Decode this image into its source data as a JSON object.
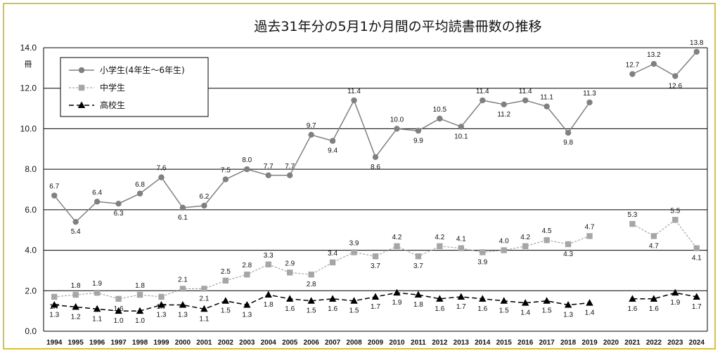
{
  "chart_data": {
    "type": "line",
    "title": "過去31年分の5月1か月間の平均読書冊数の推移",
    "ylabel": "冊",
    "ylim": [
      0,
      14
    ],
    "yticks": [
      "0.0",
      "2.0",
      "4.0",
      "6.0",
      "8.0",
      "10.0",
      "12.0",
      "14.0"
    ],
    "grid": true,
    "legend_position": "top-left",
    "categories": [
      "1994",
      "1995",
      "1996",
      "1997",
      "1998",
      "1999",
      "2000",
      "2001",
      "2002",
      "2003",
      "2004",
      "2005",
      "2006",
      "2007",
      "2008",
      "2009",
      "2010",
      "2011",
      "2012",
      "2013",
      "2014",
      "2015",
      "2016",
      "2017",
      "2018",
      "2019",
      "2020",
      "2021",
      "2022",
      "2023",
      "2024"
    ],
    "series": [
      {
        "name": "小学生(4年生〜6年生)",
        "color": "#808080",
        "marker": "circle",
        "values": [
          6.7,
          5.4,
          6.4,
          6.3,
          6.8,
          7.6,
          6.1,
          6.2,
          7.5,
          8.0,
          7.7,
          7.7,
          9.7,
          9.4,
          11.4,
          8.6,
          10.0,
          9.9,
          10.5,
          10.1,
          11.4,
          11.2,
          11.4,
          11.1,
          9.8,
          11.3,
          null,
          12.7,
          13.2,
          12.6,
          13.8
        ],
        "labels": [
          "6.7",
          "5.4",
          "6.4",
          "6.3",
          "6.8",
          "7.6",
          "6.1",
          "6.2",
          "7.5",
          "8.0",
          "7.7",
          "7.7",
          "9.7",
          "9.4",
          "11.4",
          "8.6",
          "10.0",
          "9.9",
          "10.5",
          "10.1",
          "11.4",
          "11.2",
          "11.4",
          "11.1",
          "9.8",
          "11.3",
          "",
          "12.7",
          "13.2",
          "12.6",
          "13.8"
        ]
      },
      {
        "name": "中学生",
        "color": "#a6a6a6",
        "marker": "square",
        "values": [
          1.7,
          1.8,
          1.9,
          1.6,
          1.8,
          1.7,
          2.1,
          2.1,
          2.5,
          2.8,
          3.3,
          2.9,
          2.8,
          3.4,
          3.9,
          3.7,
          4.2,
          3.7,
          4.2,
          4.1,
          3.9,
          4.0,
          4.2,
          4.5,
          4.3,
          4.7,
          null,
          5.3,
          4.7,
          5.5,
          4.1
        ],
        "labels": [
          "1.7",
          "1.8",
          "1.9",
          "1.6",
          "1.8",
          "1.7",
          "2.1",
          "2.1",
          "2.5",
          "2.8",
          "3.3",
          "2.9",
          "2.8",
          "3.4",
          "3.9",
          "3.7",
          "4.2",
          "3.7",
          "4.2",
          "4.1",
          "3.9",
          "4.0",
          "4.2",
          "4.5",
          "4.3",
          "4.7",
          "",
          "5.3",
          "4.7",
          "5.5",
          "4.1"
        ]
      },
      {
        "name": "高校生",
        "color": "#000000",
        "marker": "triangle",
        "values": [
          1.3,
          1.2,
          1.1,
          1.0,
          1.0,
          1.3,
          1.3,
          1.1,
          1.5,
          1.3,
          1.8,
          1.6,
          1.5,
          1.6,
          1.5,
          1.7,
          1.9,
          1.8,
          1.6,
          1.7,
          1.6,
          1.5,
          1.4,
          1.5,
          1.3,
          1.4,
          null,
          1.6,
          1.6,
          1.9,
          1.7
        ],
        "labels": [
          "1.3",
          "1.2",
          "1.1",
          "1.0",
          "1.0",
          "1.3",
          "1.3",
          "1.1",
          "1.5",
          "1.3",
          "1.8",
          "1.6",
          "1.5",
          "1.6",
          "1.5",
          "1.7",
          "1.9",
          "1.8",
          "1.6",
          "1.7",
          "1.6",
          "1.5",
          "1.4",
          "1.5",
          "1.3",
          "1.4",
          "",
          "1.6",
          "1.6",
          "1.9",
          "1.7"
        ]
      }
    ]
  }
}
